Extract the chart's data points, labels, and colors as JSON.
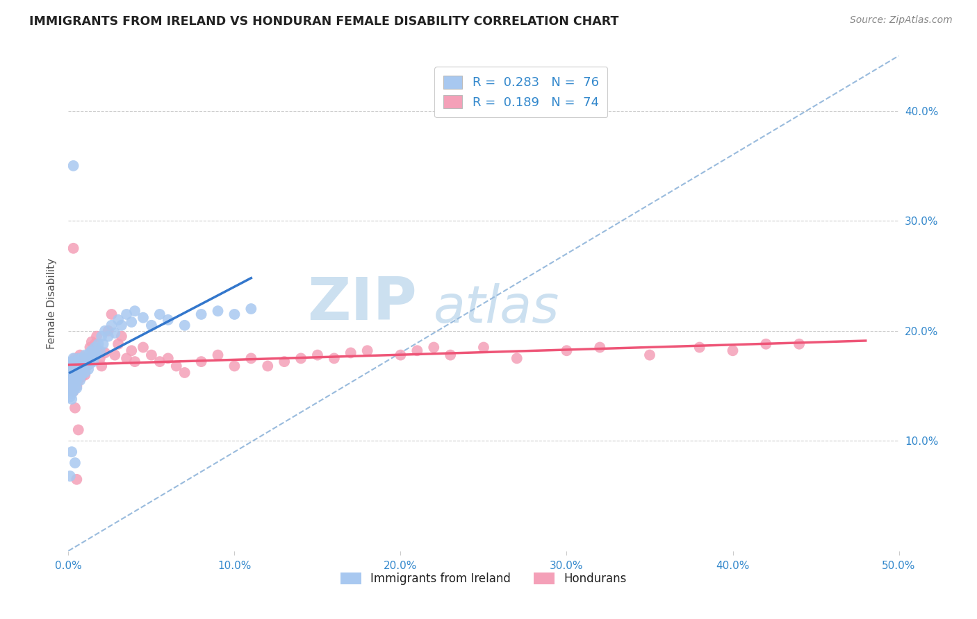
{
  "title": "IMMIGRANTS FROM IRELAND VS HONDURAN FEMALE DISABILITY CORRELATION CHART",
  "source": "Source: ZipAtlas.com",
  "ylabel": "Female Disability",
  "xlim": [
    0.0,
    0.5
  ],
  "ylim": [
    0.0,
    0.45
  ],
  "xticks": [
    0.0,
    0.1,
    0.2,
    0.3,
    0.4,
    0.5
  ],
  "yticks": [
    0.1,
    0.2,
    0.3,
    0.4
  ],
  "xticklabels": [
    "0.0%",
    "10.0%",
    "20.0%",
    "30.0%",
    "40.0%",
    "50.0%"
  ],
  "yticklabels": [
    "10.0%",
    "20.0%",
    "30.0%",
    "40.0%"
  ],
  "legend_label1": "Immigrants from Ireland",
  "legend_label2": "Hondurans",
  "R1": "0.283",
  "N1": "76",
  "R2": "0.189",
  "N2": "74",
  "color1": "#a8c8f0",
  "color2": "#f4a0b8",
  "line_color1": "#3377cc",
  "line_color2": "#ee5577",
  "dashed_color": "#99bbdd",
  "watermark_color": "#cce0f0",
  "bg_color": "#ffffff",
  "grid_color": "#cccccc",
  "title_color": "#222222",
  "axis_label_color": "#555555",
  "tick_color": "#3388cc",
  "ireland_x": [
    0.001,
    0.001,
    0.001,
    0.001,
    0.001,
    0.002,
    0.002,
    0.002,
    0.002,
    0.002,
    0.002,
    0.003,
    0.003,
    0.003,
    0.003,
    0.003,
    0.004,
    0.004,
    0.004,
    0.004,
    0.005,
    0.005,
    0.005,
    0.005,
    0.006,
    0.006,
    0.006,
    0.007,
    0.007,
    0.007,
    0.008,
    0.008,
    0.008,
    0.009,
    0.009,
    0.01,
    0.01,
    0.01,
    0.011,
    0.011,
    0.012,
    0.012,
    0.013,
    0.013,
    0.014,
    0.014,
    0.015,
    0.015,
    0.016,
    0.017,
    0.018,
    0.019,
    0.02,
    0.021,
    0.022,
    0.024,
    0.026,
    0.028,
    0.03,
    0.032,
    0.035,
    0.038,
    0.04,
    0.045,
    0.05,
    0.055,
    0.06,
    0.07,
    0.08,
    0.09,
    0.1,
    0.11,
    0.003,
    0.001,
    0.002,
    0.004
  ],
  "ireland_y": [
    0.155,
    0.148,
    0.162,
    0.17,
    0.14,
    0.158,
    0.15,
    0.165,
    0.143,
    0.172,
    0.138,
    0.16,
    0.153,
    0.168,
    0.145,
    0.175,
    0.157,
    0.163,
    0.148,
    0.17,
    0.162,
    0.155,
    0.172,
    0.148,
    0.165,
    0.158,
    0.175,
    0.162,
    0.17,
    0.155,
    0.168,
    0.175,
    0.16,
    0.165,
    0.172,
    0.17,
    0.178,
    0.162,
    0.175,
    0.168,
    0.178,
    0.165,
    0.18,
    0.17,
    0.175,
    0.182,
    0.18,
    0.172,
    0.185,
    0.178,
    0.188,
    0.182,
    0.195,
    0.188,
    0.2,
    0.195,
    0.205,
    0.198,
    0.21,
    0.205,
    0.215,
    0.208,
    0.218,
    0.212,
    0.205,
    0.215,
    0.21,
    0.205,
    0.215,
    0.218,
    0.215,
    0.22,
    0.35,
    0.068,
    0.09,
    0.08
  ],
  "honduran_x": [
    0.001,
    0.001,
    0.002,
    0.002,
    0.002,
    0.003,
    0.003,
    0.003,
    0.004,
    0.004,
    0.005,
    0.005,
    0.006,
    0.006,
    0.007,
    0.007,
    0.008,
    0.008,
    0.009,
    0.01,
    0.01,
    0.011,
    0.012,
    0.013,
    0.014,
    0.015,
    0.016,
    0.017,
    0.018,
    0.019,
    0.02,
    0.022,
    0.024,
    0.026,
    0.028,
    0.03,
    0.032,
    0.035,
    0.038,
    0.04,
    0.045,
    0.05,
    0.055,
    0.06,
    0.065,
    0.07,
    0.08,
    0.09,
    0.1,
    0.11,
    0.12,
    0.13,
    0.14,
    0.15,
    0.16,
    0.17,
    0.18,
    0.2,
    0.21,
    0.22,
    0.23,
    0.25,
    0.27,
    0.3,
    0.32,
    0.35,
    0.38,
    0.4,
    0.42,
    0.44,
    0.003,
    0.004,
    0.005,
    0.006
  ],
  "honduran_y": [
    0.152,
    0.165,
    0.148,
    0.162,
    0.155,
    0.158,
    0.168,
    0.145,
    0.162,
    0.175,
    0.15,
    0.168,
    0.155,
    0.175,
    0.162,
    0.178,
    0.158,
    0.17,
    0.165,
    0.16,
    0.172,
    0.168,
    0.175,
    0.185,
    0.19,
    0.178,
    0.188,
    0.195,
    0.182,
    0.175,
    0.168,
    0.18,
    0.2,
    0.215,
    0.178,
    0.188,
    0.195,
    0.175,
    0.182,
    0.172,
    0.185,
    0.178,
    0.172,
    0.175,
    0.168,
    0.162,
    0.172,
    0.178,
    0.168,
    0.175,
    0.168,
    0.172,
    0.175,
    0.178,
    0.175,
    0.18,
    0.182,
    0.178,
    0.182,
    0.185,
    0.178,
    0.185,
    0.175,
    0.182,
    0.185,
    0.178,
    0.185,
    0.182,
    0.188,
    0.188,
    0.275,
    0.13,
    0.065,
    0.11
  ]
}
